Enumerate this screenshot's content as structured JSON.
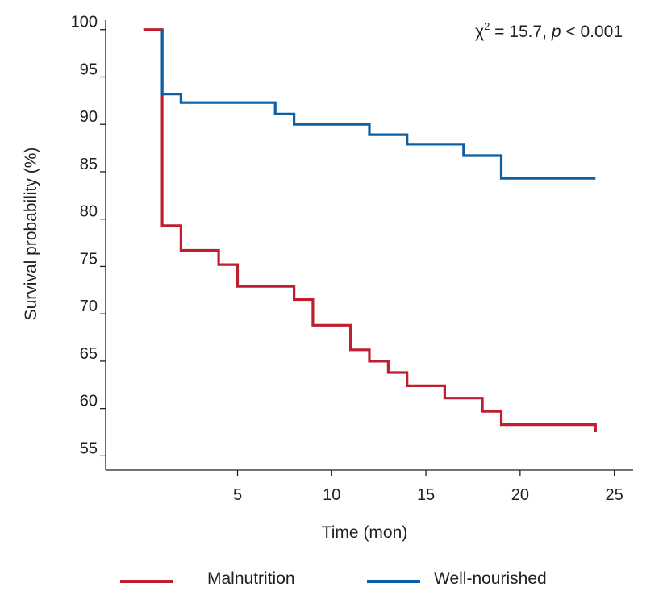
{
  "chart_data": {
    "type": "line",
    "step": true,
    "xlabel": "Time (mon)",
    "ylabel": "Survival probability (%)",
    "xlim": [
      -2,
      26
    ],
    "ylim": [
      53.5,
      101
    ],
    "xticks": [
      5,
      10,
      15,
      20,
      25
    ],
    "yticks": [
      55,
      60,
      65,
      70,
      75,
      80,
      85,
      90,
      95,
      100
    ],
    "grid": false,
    "legend_position": "bottom",
    "annotation": {
      "chi": "χ",
      "sup": "2",
      "eq": " = 15.7, ",
      "p": "p",
      "rest": " < 0.001"
    },
    "series": [
      {
        "name": "Malnutrition",
        "color": "#be1e2d",
        "x": [
          0,
          1,
          1,
          2,
          2,
          4,
          4,
          5,
          5,
          8,
          8,
          9,
          9,
          11,
          11,
          12,
          12,
          13,
          13,
          14,
          14,
          16,
          16,
          18,
          18,
          19,
          19,
          24,
          24
        ],
        "y": [
          100,
          100,
          79.3,
          79.3,
          76.7,
          76.7,
          75.2,
          75.2,
          72.9,
          72.9,
          71.5,
          71.5,
          68.8,
          68.8,
          66.2,
          66.2,
          65.0,
          65.0,
          63.8,
          63.8,
          62.4,
          62.4,
          61.1,
          61.1,
          59.7,
          59.7,
          58.3,
          58.3,
          57.5
        ]
      },
      {
        "name": "Well-nourished",
        "color": "#0b5fa5",
        "x": [
          1,
          1,
          2,
          2,
          7,
          7,
          8,
          8,
          12,
          12,
          14,
          14,
          17,
          17,
          19,
          19,
          24
        ],
        "y": [
          100,
          93.2,
          93.2,
          92.3,
          92.3,
          91.1,
          91.1,
          90.0,
          90.0,
          88.9,
          88.9,
          87.9,
          87.9,
          86.7,
          86.7,
          84.3,
          84.3
        ]
      }
    ]
  }
}
